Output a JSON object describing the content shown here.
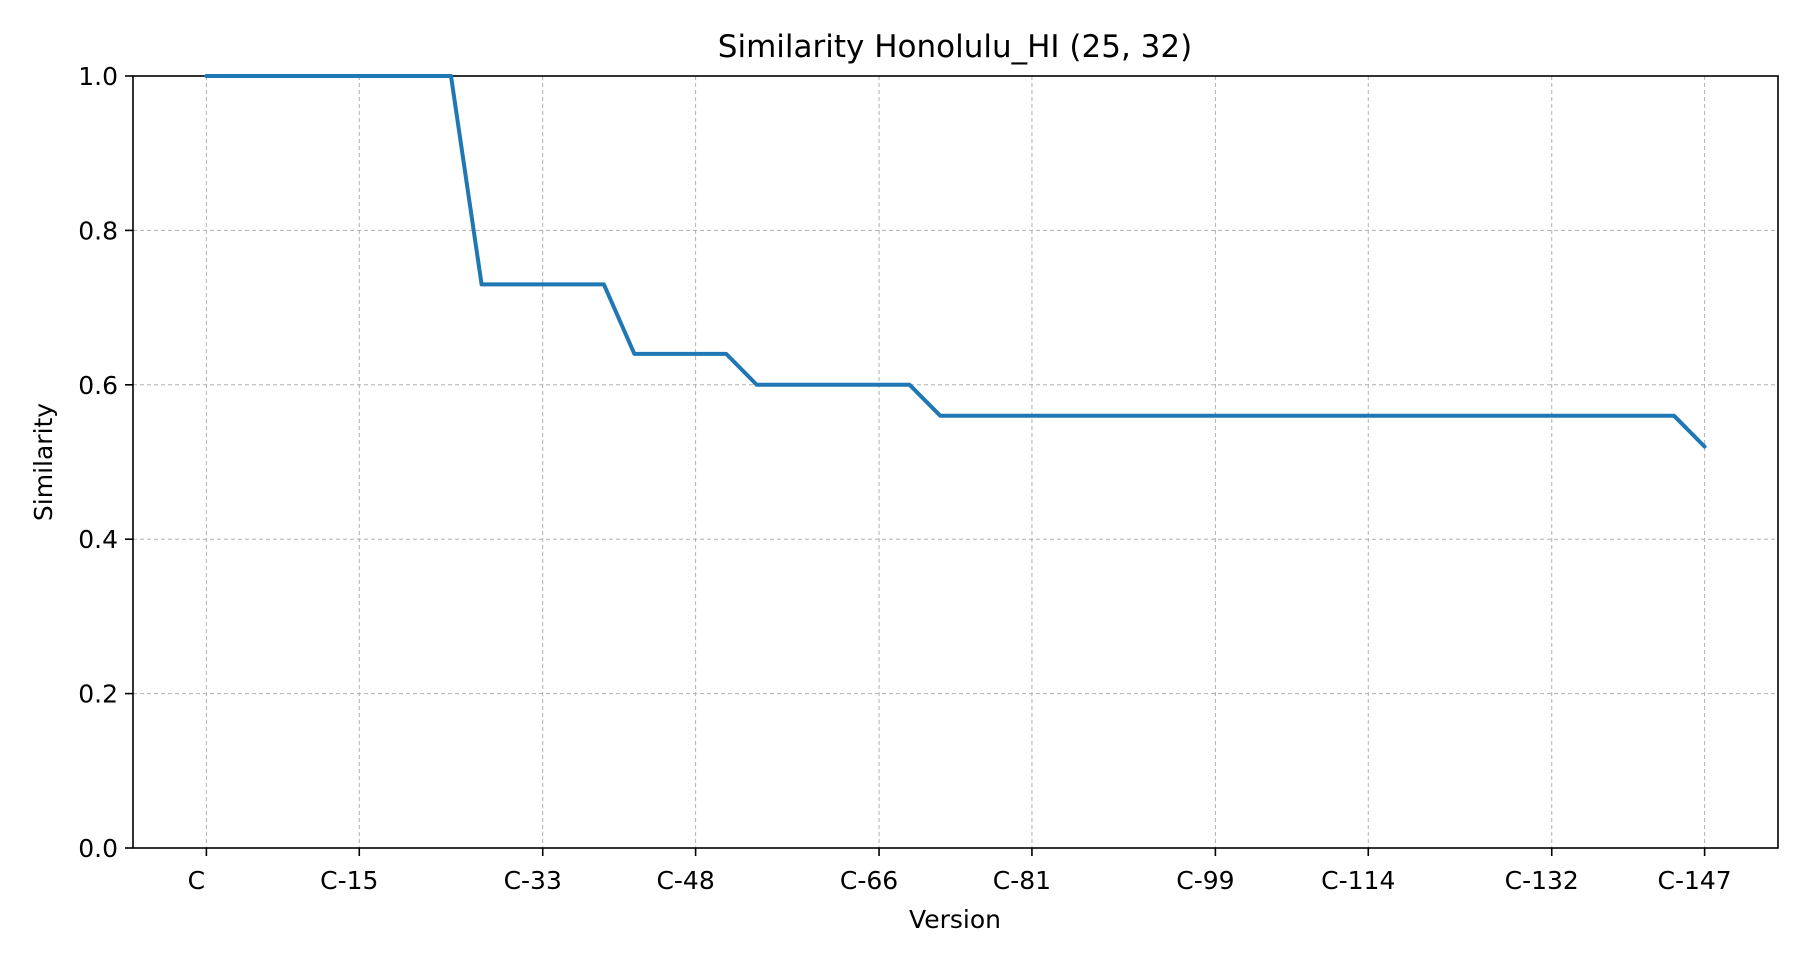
{
  "chart_data": {
    "type": "line",
    "title": "Similarity Honolulu_HI (25, 32)",
    "xlabel": "Version",
    "ylabel": "Similarity",
    "ylim": [
      0,
      1
    ],
    "y_ticks": [
      0.0,
      0.2,
      0.4,
      0.6,
      0.8,
      1.0
    ],
    "y_tick_labels": [
      "0.0",
      "0.2",
      "0.4",
      "0.6",
      "0.8",
      "1.0"
    ],
    "x_tick_positions": [
      0,
      5,
      11,
      16,
      22,
      27,
      33,
      38,
      44,
      49
    ],
    "x_tick_labels": [
      "C",
      "C-15",
      "C-33",
      "C-48",
      "C-66",
      "C-81",
      "C-99",
      "C-114",
      "C-132",
      "C-147"
    ],
    "xlim": [
      -2.4,
      51.4
    ],
    "grid": true,
    "colors": {
      "series": "#1f77b4"
    },
    "series": [
      {
        "x": [
          0,
          8,
          9,
          13,
          14,
          17,
          18,
          23,
          24,
          48,
          49
        ],
        "values": [
          1.0,
          1.0,
          0.73,
          0.73,
          0.64,
          0.64,
          0.6,
          0.6,
          0.56,
          0.56,
          0.52
        ]
      }
    ]
  }
}
